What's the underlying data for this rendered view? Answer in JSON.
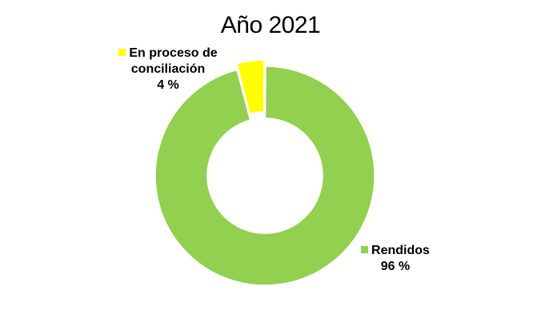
{
  "chart_data": {
    "type": "pie",
    "title": "Año 2021",
    "slices": [
      {
        "label": "En proceso de conciliación",
        "value": 4,
        "display": "4  %",
        "color": "#ffff00"
      },
      {
        "label": "Rendidos",
        "value": 96,
        "display": "96  %",
        "color": "#92d050"
      }
    ],
    "donut": true,
    "background": "#ffffff"
  }
}
